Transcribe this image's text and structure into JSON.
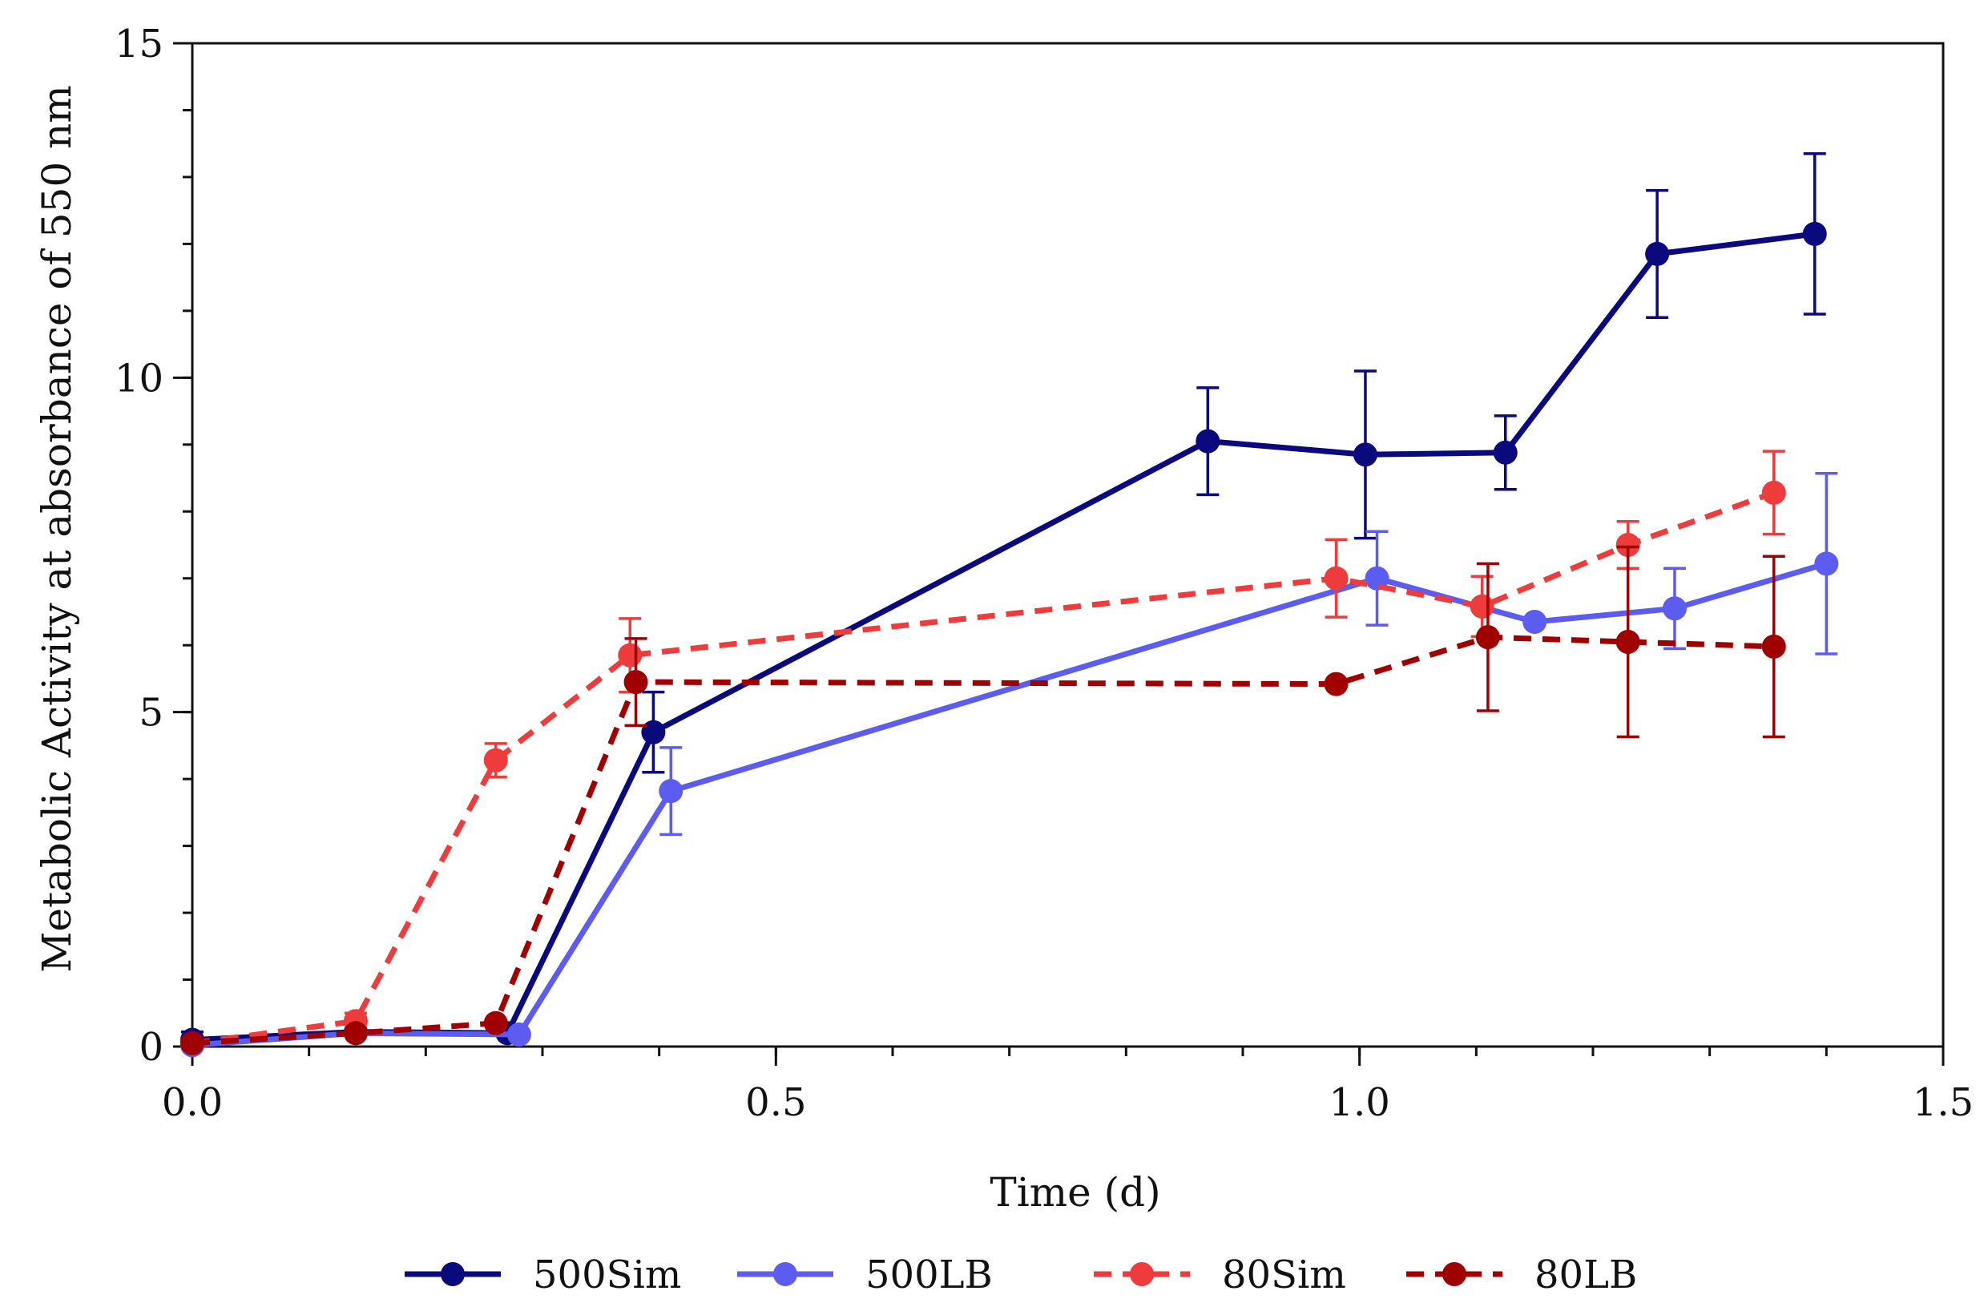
{
  "chart_data": {
    "type": "line",
    "title": "",
    "xlabel": "Time (d)",
    "ylabel": "Metabolic Activity at absorbance of 550 nm",
    "xlim": [
      0,
      1.5
    ],
    "ylim": [
      0,
      15
    ],
    "x_ticks": [
      0.0,
      0.5,
      1.0,
      1.5
    ],
    "x_tick_labels": [
      "0.0",
      "0.5",
      "1.0",
      "1.5"
    ],
    "x_minor_step": 0.1,
    "y_ticks": [
      0,
      5,
      10,
      15
    ],
    "y_tick_labels": [
      "0",
      "5",
      "10",
      "15"
    ],
    "y_minor_step": 1,
    "grid": false,
    "legend_position": "bottom",
    "series": [
      {
        "name": "500Sim",
        "color": "#0a0a7e",
        "dashed": false,
        "x": [
          0.0,
          0.14,
          0.27,
          0.395,
          0.87,
          1.005,
          1.125,
          1.255,
          1.39
        ],
        "y": [
          0.1,
          0.22,
          0.2,
          4.7,
          9.05,
          8.85,
          8.88,
          11.85,
          12.15
        ],
        "err": [
          0.12,
          0.0,
          0.0,
          0.6,
          0.8,
          1.25,
          0.55,
          0.95,
          1.2
        ]
      },
      {
        "name": "500LB",
        "color": "#5c5cf0",
        "dashed": false,
        "x": [
          0.0,
          0.14,
          0.28,
          0.41,
          1.015,
          1.15,
          1.27,
          1.4
        ],
        "y": [
          0.02,
          0.2,
          0.18,
          3.82,
          7.0,
          6.35,
          6.55,
          7.22
        ],
        "err": [
          0.0,
          0.0,
          0.0,
          0.65,
          0.7,
          0.0,
          0.6,
          1.35
        ]
      },
      {
        "name": "80Sim",
        "color": "#ee3b3b",
        "dashed": true,
        "x": [
          0.0,
          0.14,
          0.26,
          0.375,
          0.98,
          1.105,
          1.23,
          1.355
        ],
        "y": [
          0.05,
          0.38,
          4.28,
          5.85,
          7.0,
          6.58,
          7.5,
          8.28
        ],
        "err": [
          0.0,
          0.12,
          0.25,
          0.55,
          0.58,
          0.45,
          0.35,
          0.62
        ]
      },
      {
        "name": "80LB",
        "color": "#a00000",
        "dashed": true,
        "x": [
          0.0,
          0.14,
          0.26,
          0.38,
          0.98,
          1.11,
          1.23,
          1.355
        ],
        "y": [
          0.05,
          0.2,
          0.35,
          5.45,
          5.42,
          6.12,
          6.05,
          5.98
        ],
        "err": [
          0.0,
          0.0,
          0.0,
          0.65,
          0.0,
          1.1,
          1.42,
          1.35
        ]
      }
    ]
  }
}
